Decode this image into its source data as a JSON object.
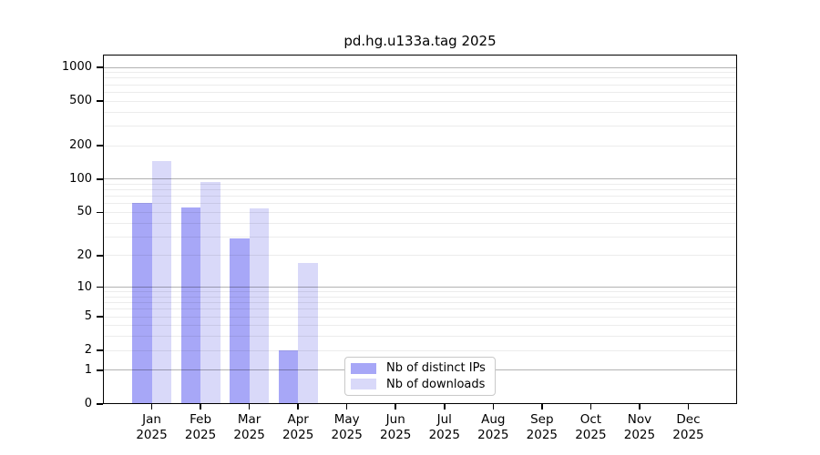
{
  "chart_data": {
    "type": "bar",
    "title": "pd.hg.u133a.tag 2025",
    "categories": [
      "Jan",
      "Feb",
      "Mar",
      "Apr",
      "May",
      "Jun",
      "Jul",
      "Aug",
      "Sep",
      "Oct",
      "Nov",
      "Dec"
    ],
    "year_label": "2025",
    "series": [
      {
        "name": "Nb of distinct IPs",
        "color": "#a7a7f7",
        "values": [
          61,
          55,
          29,
          2,
          0,
          0,
          0,
          0,
          0,
          0,
          0,
          0
        ]
      },
      {
        "name": "Nb of downloads",
        "color": "#d9d9f9",
        "values": [
          145,
          95,
          54,
          17,
          0,
          0,
          0,
          0,
          0,
          0,
          0,
          0
        ]
      }
    ],
    "yscale": "log1p",
    "yticks": [
      0,
      1,
      2,
      5,
      10,
      20,
      50,
      100,
      200,
      500,
      1000
    ],
    "ylim": [
      0,
      1300
    ],
    "grid": true,
    "gridlines": {
      "major": [
        1,
        10,
        100,
        1000
      ],
      "minor": [
        2,
        3,
        4,
        5,
        6,
        7,
        8,
        9,
        20,
        30,
        40,
        50,
        60,
        70,
        80,
        90,
        200,
        300,
        400,
        500,
        600,
        700,
        800,
        900
      ]
    },
    "legend_position": "lower center"
  }
}
